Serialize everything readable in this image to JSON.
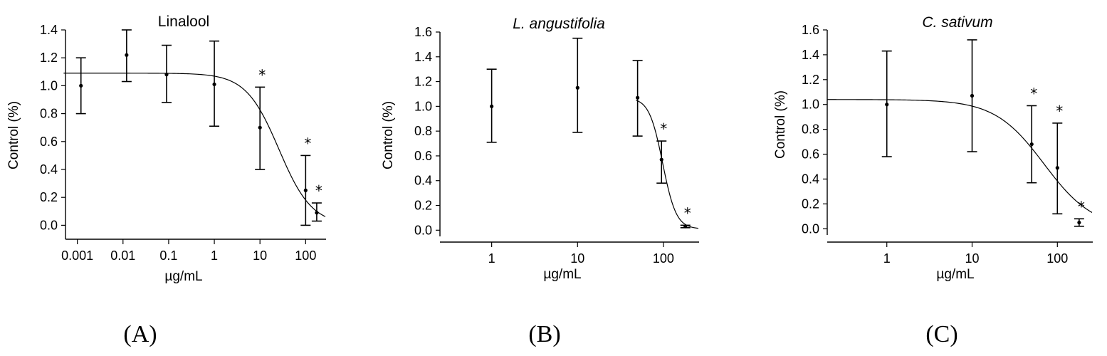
{
  "chart_data": [
    {
      "type": "scatter",
      "panel_label": "(A)",
      "title": "Linalool",
      "title_italic": false,
      "xlabel": "µg/mL",
      "ylabel": "Control (%)",
      "x_scale": "log",
      "xlim": [
        0.00055,
        280
      ],
      "ylim": [
        -0.1,
        1.4
      ],
      "x_ticks": [
        0.001,
        0.01,
        0.1,
        1,
        10,
        100
      ],
      "x_tick_labels": [
        "0.001",
        "0.01",
        "0.1",
        "1",
        "10",
        "100"
      ],
      "y_ticks": [
        0,
        0.2,
        0.4,
        0.6,
        0.8,
        1.0,
        1.2,
        1.4
      ],
      "y_tick_labels": [
        "0.0",
        "0.2",
        "0.4",
        "0.6",
        "0.8",
        "1.0",
        "1.2",
        "1.4"
      ],
      "points": [
        {
          "x": 0.0012,
          "y": 1.0,
          "err_low": 0.8,
          "err_high": 1.2,
          "significant": false
        },
        {
          "x": 0.012,
          "y": 1.22,
          "err_low": 1.03,
          "err_high": 1.4,
          "significant": false
        },
        {
          "x": 0.09,
          "y": 1.08,
          "err_low": 0.88,
          "err_high": 1.29,
          "significant": false
        },
        {
          "x": 1,
          "y": 1.01,
          "err_low": 0.71,
          "err_high": 1.32,
          "significant": false
        },
        {
          "x": 10,
          "y": 0.7,
          "err_low": 0.4,
          "err_high": 0.99,
          "significant": true
        },
        {
          "x": 100,
          "y": 0.25,
          "err_low": 0.0,
          "err_high": 0.5,
          "significant": true
        },
        {
          "x": 175,
          "y": 0.09,
          "err_low": 0.03,
          "err_high": 0.16,
          "significant": true
        }
      ],
      "fit": {
        "top": 1.09,
        "bottom": 0.0,
        "ec50": 26,
        "hill": 1.2,
        "x_start": 0.0005,
        "x_end": 270
      }
    },
    {
      "type": "scatter",
      "panel_label": "(B)",
      "title": "L. angustifolia",
      "title_italic": true,
      "xlabel": "µg/mL",
      "ylabel": "Control (%)",
      "x_scale": "log",
      "xlim": [
        0.25,
        260
      ],
      "ylim": [
        -0.05,
        1.6
      ],
      "x_ticks": [
        1,
        10,
        100
      ],
      "x_tick_labels": [
        "1",
        "10",
        "100"
      ],
      "y_ticks": [
        0,
        0.2,
        0.4,
        0.6,
        0.8,
        1.0,
        1.2,
        1.4,
        1.6
      ],
      "y_tick_labels": [
        "0.0",
        "0.2",
        "0.4",
        "0.6",
        "0.8",
        "1.0",
        "1.2",
        "1.4",
        "1.6"
      ],
      "points": [
        {
          "x": 1,
          "y": 1.0,
          "err_low": 0.71,
          "err_high": 1.3,
          "significant": false
        },
        {
          "x": 10,
          "y": 1.15,
          "err_low": 0.79,
          "err_high": 1.55,
          "significant": false
        },
        {
          "x": 50,
          "y": 1.07,
          "err_low": 0.76,
          "err_high": 1.37,
          "significant": false
        },
        {
          "x": 95,
          "y": 0.57,
          "err_low": 0.38,
          "err_high": 0.72,
          "significant": true
        },
        {
          "x": 180,
          "y": 0.03,
          "err_low": 0.02,
          "err_high": 0.04,
          "significant": true
        }
      ],
      "fit": {
        "top": 1.07,
        "bottom": 0.01,
        "ec50": 98,
        "hill": 5.5,
        "x_start": 48,
        "x_end": 255
      }
    },
    {
      "type": "scatter",
      "panel_label": "(C)",
      "title": "C. sativum",
      "title_italic": true,
      "xlabel": "µg/mL",
      "ylabel": "Control (%)",
      "x_scale": "log",
      "xlim": [
        0.2,
        260
      ],
      "ylim": [
        -0.05,
        1.6
      ],
      "x_ticks": [
        1,
        10,
        100
      ],
      "x_tick_labels": [
        "1",
        "10",
        "100"
      ],
      "y_ticks": [
        0,
        0.2,
        0.4,
        0.6,
        0.8,
        1.0,
        1.2,
        1.4,
        1.6
      ],
      "y_tick_labels": [
        "0.0",
        "0.2",
        "0.4",
        "0.6",
        "0.8",
        "1.0",
        "1.2",
        "1.4",
        "1.6"
      ],
      "points": [
        {
          "x": 1,
          "y": 1.0,
          "err_low": 0.58,
          "err_high": 1.43,
          "significant": false
        },
        {
          "x": 10,
          "y": 1.07,
          "err_low": 0.62,
          "err_high": 1.52,
          "significant": false
        },
        {
          "x": 50,
          "y": 0.68,
          "err_low": 0.37,
          "err_high": 0.99,
          "significant": true
        },
        {
          "x": 100,
          "y": 0.49,
          "err_low": 0.12,
          "err_high": 0.85,
          "significant": true
        },
        {
          "x": 180,
          "y": 0.05,
          "err_low": 0.02,
          "err_high": 0.08,
          "significant": true
        }
      ],
      "fit": {
        "top": 1.04,
        "bottom": 0.0,
        "ec50": 70,
        "hill": 1.5,
        "x_start": 0.2,
        "x_end": 255
      }
    }
  ]
}
